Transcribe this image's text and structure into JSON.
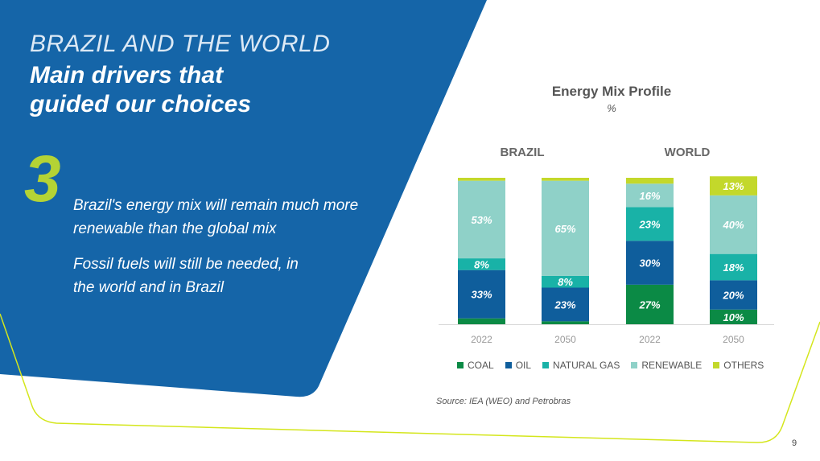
{
  "slide": {
    "title_line1": "BRAZIL AND THE WORLD",
    "title_line2": "Main drivers that guided our choices",
    "number": "3",
    "point1": "Brazil's energy mix will remain much more renewable than the global mix",
    "point2": "Fossil fuels will still be needed, in the world and in Brazil",
    "source": "Source: IEA (WEO) and Petrobras",
    "page_number": "9"
  },
  "colors": {
    "coal": "#0b8a45",
    "oil": "#0f5e9c",
    "natural_gas": "#19b2a7",
    "renewable": "#8fd1c8",
    "others": "#c3d82b",
    "panel_blue": "#1565a8",
    "accent_lime": "#d4e61c"
  },
  "chart_data": {
    "type": "bar",
    "stacked": true,
    "title": "Energy Mix Profile",
    "unit": "%",
    "groups": [
      "BRAZIL",
      "WORLD"
    ],
    "categories": [
      "2022",
      "2050",
      "2022",
      "2050"
    ],
    "category_group": [
      0,
      0,
      1,
      1
    ],
    "series": [
      {
        "name": "COAL",
        "values": [
          4,
          2,
          27,
          10
        ],
        "labels": [
          "",
          "",
          "27%",
          "10%"
        ]
      },
      {
        "name": "OIL",
        "values": [
          33,
          23,
          30,
          20
        ],
        "labels": [
          "33%",
          "23%",
          "30%",
          "20%"
        ]
      },
      {
        "name": "NATURAL GAS",
        "values": [
          8,
          8,
          23,
          18
        ],
        "labels": [
          "8%",
          "8%",
          "23%",
          "18%"
        ]
      },
      {
        "name": "RENEWABLE",
        "values": [
          53,
          65,
          16,
          40
        ],
        "labels": [
          "53%",
          "65%",
          "16%",
          "40%"
        ]
      },
      {
        "name": "OTHERS",
        "values": [
          2,
          2,
          4,
          13
        ],
        "labels": [
          "",
          "",
          "",
          "13%"
        ]
      }
    ],
    "ylim": [
      0,
      100
    ],
    "legend_position": "bottom"
  }
}
